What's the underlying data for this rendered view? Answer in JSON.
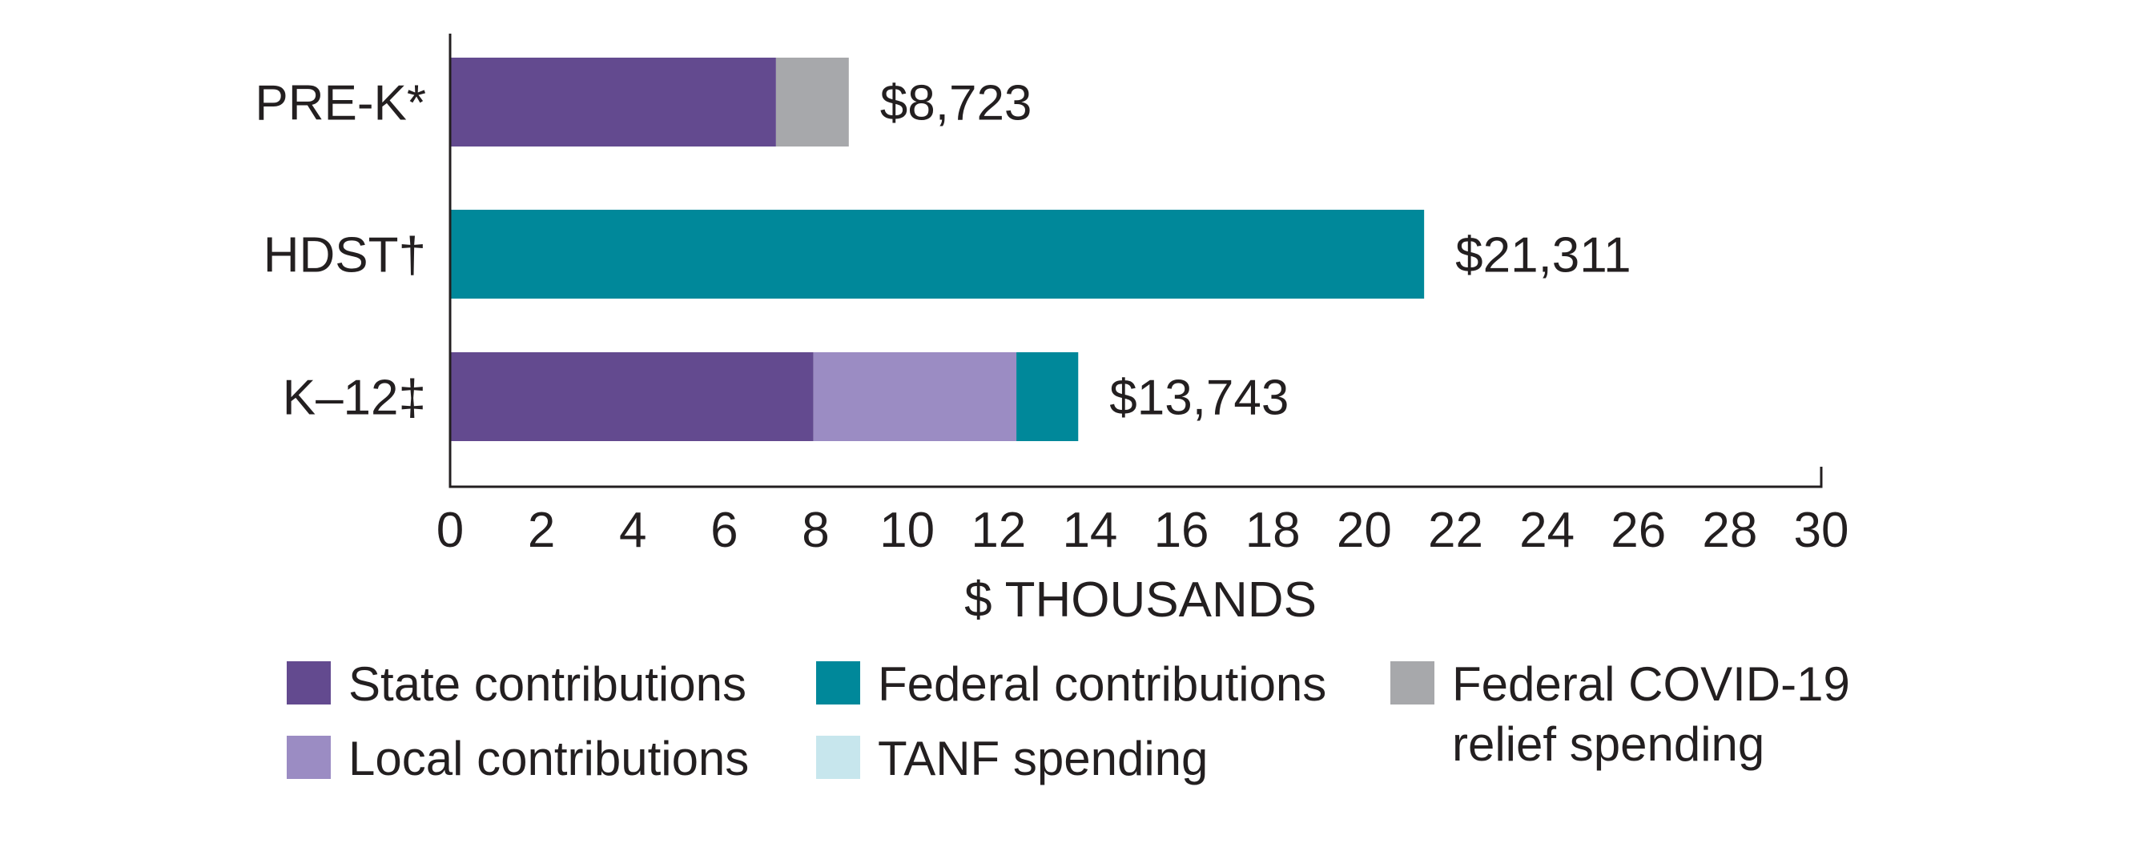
{
  "chart_data": {
    "type": "bar",
    "orientation": "horizontal",
    "stacked": true,
    "title": "",
    "xlabel": "$ THOUSANDS",
    "ylabel": "",
    "xlim": [
      0,
      30
    ],
    "xticks": [
      0,
      2,
      4,
      6,
      8,
      10,
      12,
      14,
      16,
      18,
      20,
      22,
      24,
      26,
      28,
      30
    ],
    "grid": false,
    "categories": [
      "PRE-K*",
      "HDST†",
      "K–12‡"
    ],
    "totals": [
      8.723,
      21.311,
      13.743
    ],
    "total_labels": [
      "$8,723",
      "$21,311",
      "$13,743"
    ],
    "series": [
      {
        "name": "State contributions",
        "color": "#634a8f",
        "values": [
          7.13,
          0,
          7.95
        ]
      },
      {
        "name": "Local contributions",
        "color": "#9b8cc3",
        "values": [
          0,
          0,
          4.44
        ]
      },
      {
        "name": "Federal contributions",
        "color": "#00889a",
        "values": [
          0,
          21.311,
          1.353
        ]
      },
      {
        "name": "TANF spending",
        "color": "#c7e6ed",
        "values": [
          0,
          0,
          0
        ]
      },
      {
        "name": "Federal COVID-19 relief spending",
        "color": "#a7a8ab",
        "values": [
          1.593,
          0,
          0
        ]
      }
    ],
    "legend": {
      "placement": "bottom",
      "columns": [
        [
          "State contributions",
          "Local contributions"
        ],
        [
          "Federal contributions",
          "TANF spending"
        ],
        [
          "Federal COVID-19 relief spending"
        ]
      ],
      "label_lines": {
        "Federal COVID-19 relief spending": [
          "Federal COVID-19",
          "relief spending"
        ]
      }
    }
  }
}
